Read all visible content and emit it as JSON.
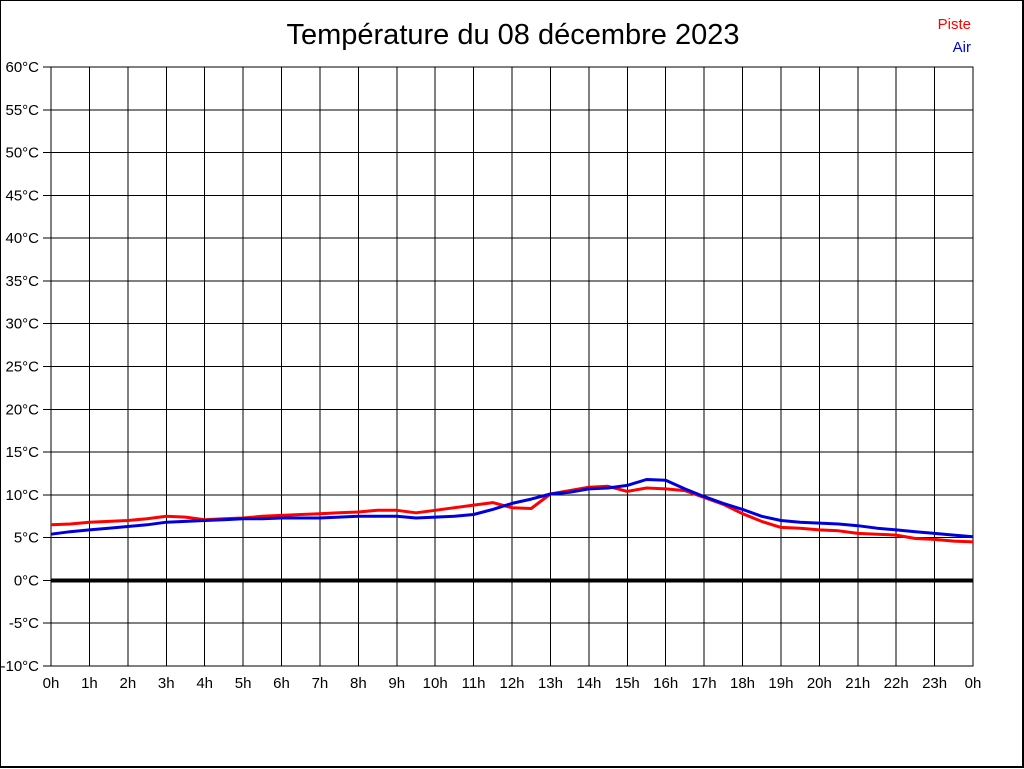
{
  "title": "Température du 08 décembre 2023",
  "legend": {
    "items": [
      {
        "label": "Piste",
        "color": "#ff0000"
      },
      {
        "label": "Air",
        "color": "#0000dd"
      }
    ]
  },
  "chart_data": {
    "type": "line",
    "title": "Température du 08 décembre 2023",
    "xlabel": "",
    "ylabel": "°C",
    "xlim": [
      0,
      24
    ],
    "ylim": [
      -10,
      60
    ],
    "grid": true,
    "frame": true,
    "zero_line_value": 0,
    "legend_position": "top-right",
    "x_tick_hours": [
      0,
      1,
      2,
      3,
      4,
      5,
      6,
      7,
      8,
      9,
      10,
      11,
      12,
      13,
      14,
      15,
      16,
      17,
      18,
      19,
      20,
      21,
      22,
      23,
      24
    ],
    "x_tick_labels": [
      "0h",
      "1h",
      "2h",
      "3h",
      "4h",
      "5h",
      "6h",
      "7h",
      "8h",
      "9h",
      "10h",
      "11h",
      "12h",
      "13h",
      "14h",
      "15h",
      "16h",
      "17h",
      "18h",
      "19h",
      "20h",
      "21h",
      "22h",
      "23h",
      "0h"
    ],
    "y_ticks": [
      60,
      55,
      50,
      45,
      40,
      35,
      30,
      25,
      20,
      15,
      10,
      5,
      0,
      -5,
      -10
    ],
    "y_tick_labels": [
      "60°C",
      "55°C",
      "50°C",
      "45°C",
      "40°C",
      "35°C",
      "30°C",
      "25°C",
      "20°C",
      "15°C",
      "10°C",
      "5°C",
      "0°C",
      "-5°C",
      "-10°C"
    ],
    "x_step_hours": 0.5,
    "series": [
      {
        "name": "Piste",
        "color": "#ff0000",
        "values": [
          6.5,
          6.6,
          6.8,
          6.9,
          7.0,
          7.2,
          7.5,
          7.4,
          7.1,
          7.2,
          7.3,
          7.5,
          7.6,
          7.7,
          7.8,
          7.9,
          8.0,
          8.2,
          8.2,
          7.9,
          8.2,
          8.5,
          8.8,
          9.1,
          8.5,
          8.4,
          10.1,
          10.5,
          10.9,
          11.0,
          10.4,
          10.8,
          10.7,
          10.5,
          9.7,
          8.9,
          7.8,
          6.9,
          6.2,
          6.1,
          5.9,
          5.8,
          5.5,
          5.4,
          5.3,
          4.9,
          4.8,
          4.6,
          4.5
        ]
      },
      {
        "name": "Air",
        "color": "#0000dd",
        "values": [
          5.4,
          5.7,
          5.9,
          6.1,
          6.3,
          6.5,
          6.8,
          6.9,
          7.0,
          7.1,
          7.2,
          7.2,
          7.3,
          7.3,
          7.3,
          7.4,
          7.5,
          7.5,
          7.5,
          7.3,
          7.4,
          7.5,
          7.7,
          8.3,
          9.0,
          9.5,
          10.1,
          10.3,
          10.7,
          10.8,
          11.1,
          11.8,
          11.7,
          10.7,
          9.8,
          9.0,
          8.3,
          7.5,
          7.0,
          6.8,
          6.7,
          6.6,
          6.4,
          6.1,
          5.9,
          5.7,
          5.5,
          5.3,
          5.1
        ]
      }
    ]
  }
}
